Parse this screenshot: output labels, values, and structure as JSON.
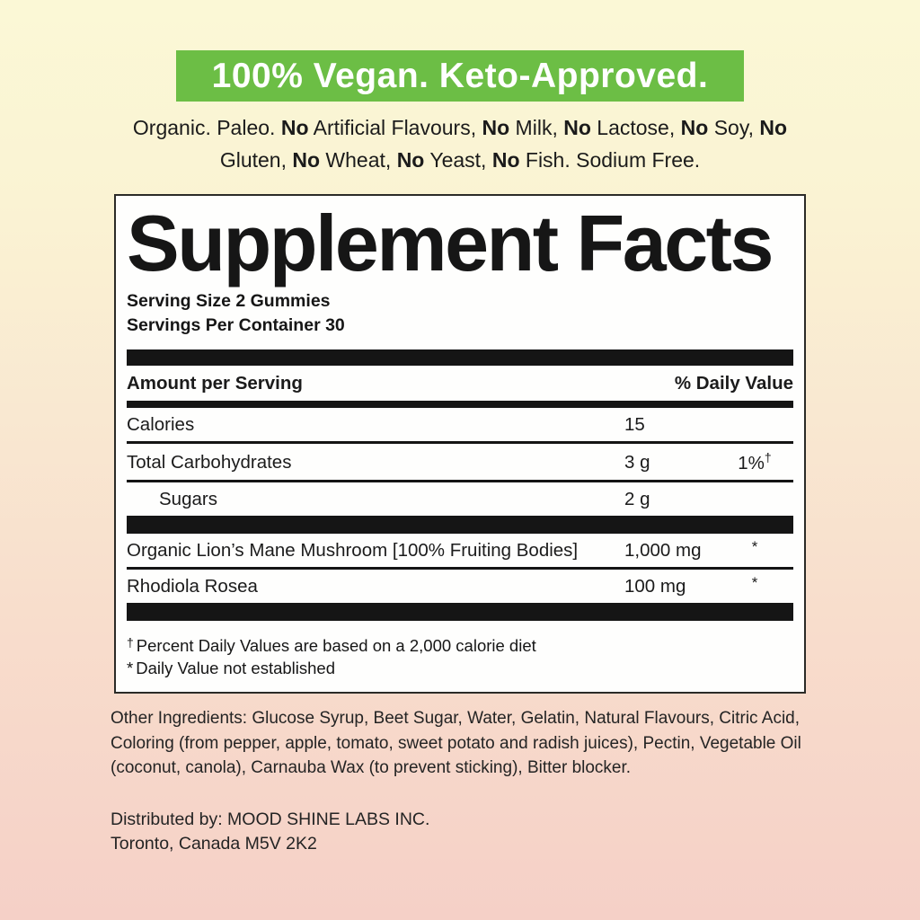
{
  "colors": {
    "background_top": "#FBF8D6",
    "background_bottom": "#F5D0C7",
    "banner_green": "#6CBE45",
    "banner_text": "#FFFFFF",
    "text": "#1B1B1B",
    "bar_black": "#151515"
  },
  "banner": {
    "label": "100% Vegan. Keto-Approved."
  },
  "claims": {
    "line1": [
      {
        "text": "Organic. Paleo. "
      },
      {
        "text": "No"
      },
      {
        "text": " Artificial Flavours, "
      },
      {
        "text": "No"
      },
      {
        "text": " Milk, "
      },
      {
        "text": "No"
      },
      {
        "text": " Lactose, "
      },
      {
        "text": "No"
      },
      {
        "text": " Soy, "
      },
      {
        "text": "No"
      }
    ],
    "line2": [
      {
        "text": "Gluten, "
      },
      {
        "text": "No"
      },
      {
        "text": " Wheat, "
      },
      {
        "text": "No"
      },
      {
        "text": " Yeast, "
      },
      {
        "text": "No"
      },
      {
        "text": " Fish. Sodium Free."
      }
    ]
  },
  "panel": {
    "title": "Supplement Facts",
    "serving_size": "Serving Size 2 Gummies",
    "servings_per_container": "Servings Per Container 30",
    "header": {
      "left": "Amount per Serving",
      "right": "% Daily Value"
    },
    "rows": [
      {
        "name": "Calories",
        "amount": "15",
        "dv": ""
      },
      {
        "name": "Total Carbohydrates",
        "amount": "3 g",
        "dv": "1%",
        "dv_sup": "†"
      },
      {
        "name": "Sugars",
        "amount": "2 g",
        "dv": ""
      },
      {
        "name": "Organic Lion’s Mane Mushroom [100% Fruiting Bodies]",
        "amount": "1,000 mg",
        "dv": "*"
      },
      {
        "name": "Rhodiola Rosea",
        "amount": "100 mg",
        "dv": "*"
      }
    ],
    "footnotes": [
      {
        "symbol": "†",
        "text": "Percent Daily Values are based on a 2,000 calorie diet"
      },
      {
        "symbol": "*",
        "text": "Daily Value not established"
      }
    ]
  },
  "other_ingredients": {
    "lines": [
      "Other Ingredients: Glucose Syrup, Beet Sugar, Water, Gelatin, Natural Flavours, Citric Acid,",
      "Coloring (from pepper, apple, tomato, sweet potato and radish juices), Pectin, Vegetable Oil",
      "(coconut, canola), Carnauba Wax (to prevent sticking), Bitter blocker."
    ]
  },
  "distributor": {
    "lines": [
      "Distributed by: MOOD SHINE LABS INC.",
      "Toronto, Canada M5V 2K2"
    ]
  }
}
